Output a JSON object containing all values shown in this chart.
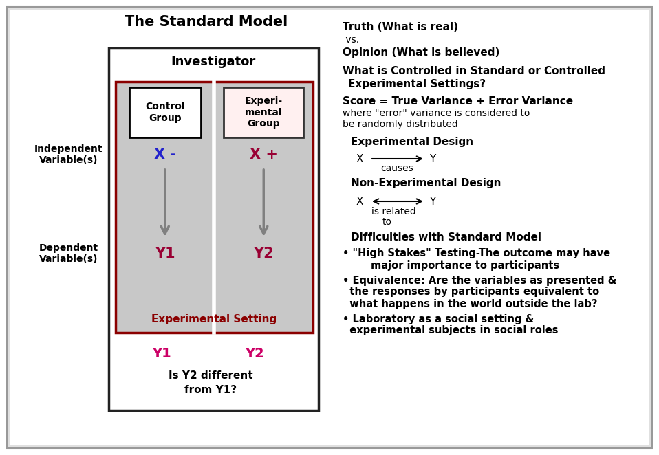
{
  "title": "The Standard Model",
  "left_panel": {
    "investigator_label": "Investigator",
    "control_group_label": "Control\nGroup",
    "experimental_group_label": "Experi-\nmental\nGroup",
    "x_minus_label": "X -",
    "x_plus_label": "X +",
    "y1_label": "Y1",
    "y2_label": "Y2",
    "experimental_setting_label": "Experimental Setting",
    "independent_var_label": "Independent\nVariable(s)",
    "dependent_var_label": "Dependent\nVariable(s)",
    "bottom_y1": "Y1",
    "bottom_y2": "Y2",
    "question": "Is Y2 different\nfrom Y1?"
  },
  "right_panel": {
    "line1_bold": "Truth (What is real)",
    "line2_normal": " vs.",
    "line3_bold": "Opinion (What is believed)",
    "line4_bold": "What is Controlled in Standard or Controlled\n Experimental Settings?",
    "line5_bold": "Score = True Variance + Error Variance",
    "line5_normal": "where \"error\" variance is considered to\nbe randomly distributed",
    "exp_design_label": "Experimental Design",
    "non_exp_design_label": "Non-Experimental Design",
    "causes_label": "causes",
    "related_line1": "is related",
    "related_line2": "to",
    "difficulties_label": "Difficulties with Standard Model",
    "bullet1_line1": "• \"High Stakes\" Testing-The outcome may have",
    "bullet1_line2": "        major importance to participants",
    "bullet2_line1": "• Equivalence: Are the variables as presented &",
    "bullet2_line2": "  the responses by participants equivalent to",
    "bullet2_line3": "  what happens in the world outside the lab?",
    "bullet3_line1": "• Laboratory as a social setting &",
    "bullet3_line2": "  experimental subjects in social roles"
  },
  "colors": {
    "crimson": "#b22222",
    "crimson_label": "#cc0066",
    "blue": "#2222cc",
    "dark_crimson": "#990033",
    "gray_box": "#c8c8c8",
    "inner_border": "#8b0000",
    "arrow_gray": "#808080",
    "white": "#ffffff",
    "black": "#000000",
    "panel_bg": "#e8e8e8",
    "outer_border": "#aaaaaa"
  }
}
